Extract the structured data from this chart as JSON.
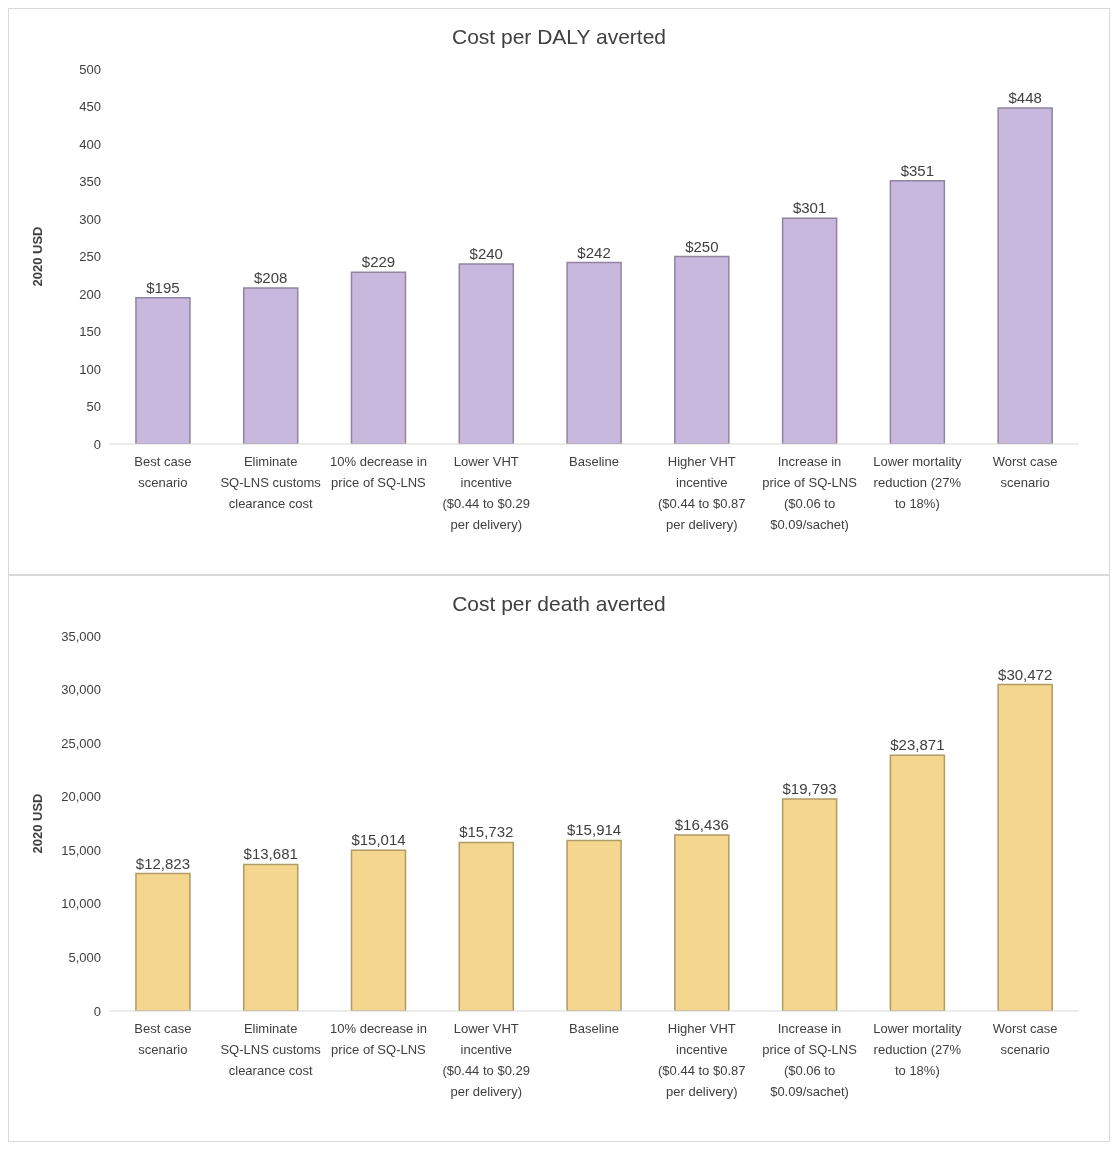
{
  "chart_data": [
    {
      "type": "bar",
      "title": "Cost per DALY averted",
      "ylabel": "2020 USD",
      "categories": [
        "Best case scenario",
        "Eliminate SQ-LNS customs clearance cost",
        "10% decrease in price of SQ-LNS",
        "Lower VHT incentive ($0.44 to $0.29 per delivery)",
        "Baseline",
        "Higher VHT incentive ($0.44 to $0.87 per delivery)",
        "Increase in price of SQ-LNS ($0.06 to $0.09/sachet)",
        "Lower mortality reduction (27% to 18%)",
        "Worst case scenario"
      ],
      "series": [
        {
          "color": "#c8b8dd",
          "values": [
            195,
            208,
            229,
            240,
            242,
            250,
            301,
            351,
            448
          ],
          "value_labels": [
            "$195",
            "$208",
            "$229",
            "$240",
            "$242",
            "$250",
            "$301",
            "$351",
            "$448"
          ]
        }
      ],
      "ylim": [
        0,
        500
      ],
      "yticks": [
        0,
        50,
        100,
        150,
        200,
        250,
        300,
        350,
        400,
        450,
        500
      ],
      "grid": false,
      "legend": false
    },
    {
      "type": "bar",
      "title": "Cost per death averted",
      "ylabel": "2020 USD",
      "categories": [
        "Best case scenario",
        "Eliminate SQ-LNS customs clearance cost",
        "10% decrease in price of SQ-LNS",
        "Lower VHT incentive ($0.44 to $0.29 per delivery)",
        "Baseline",
        "Higher VHT incentive ($0.44 to $0.87 per delivery)",
        "Increase in price of SQ-LNS ($0.06 to $0.09/sachet)",
        "Lower mortality reduction (27% to 18%)",
        "Worst case scenario"
      ],
      "series": [
        {
          "color": "#f5d68e",
          "values": [
            12823,
            13681,
            15014,
            15732,
            15914,
            16436,
            19793,
            23871,
            30472
          ],
          "value_labels": [
            "$12,823",
            "$13,681",
            "$15,014",
            "$15,732",
            "$15,914",
            "$16,436",
            "$19,793",
            "$23,871",
            "$30,472"
          ]
        }
      ],
      "ylim": [
        0,
        35000
      ],
      "yticks": [
        {
          "value": 0,
          "label": "0"
        },
        {
          "value": 5000,
          "label": "5,000"
        },
        {
          "value": 10000,
          "label": "10,000"
        },
        {
          "value": 15000,
          "label": "15,000"
        },
        {
          "value": 20000,
          "label": "20,000"
        },
        {
          "value": 25000,
          "label": "25,000"
        },
        {
          "value": 30000,
          "label": "30,000"
        },
        {
          "value": 35000,
          "label": "35,000"
        }
      ],
      "grid": false,
      "legend": false
    }
  ]
}
